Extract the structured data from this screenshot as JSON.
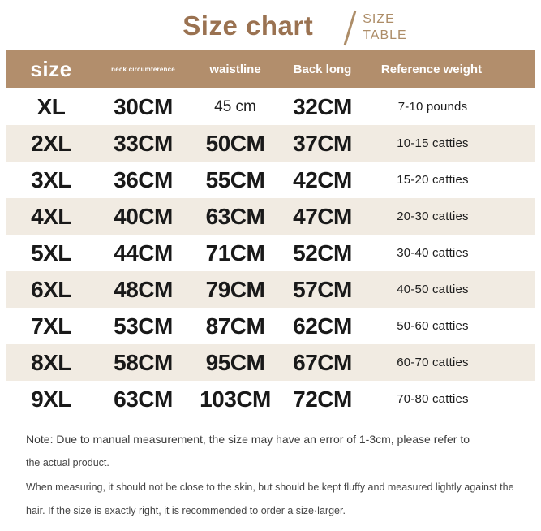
{
  "header": {
    "title": "Size chart",
    "subtitle_line1": "SIZE",
    "subtitle_line2": "TABLE"
  },
  "colors": {
    "header_bg": "#b28e6c",
    "row_alt_bg": "#f1ebe2",
    "title_brown": "#9a7251",
    "subtitle_brown": "#ad8d68",
    "body_text": "#191919",
    "note_text": "#3d3d3d"
  },
  "table": {
    "headers": [
      "size",
      "neck circumference",
      "waistline",
      "Back long",
      "Reference weight"
    ],
    "rows": [
      {
        "size": "XL",
        "neck": "30CM",
        "waist": "45 cm",
        "back": "32CM",
        "weight": "7-10 pounds",
        "waist_small": true
      },
      {
        "size": "2XL",
        "neck": "33CM",
        "waist": "50CM",
        "back": "37CM",
        "weight": "10-15 catties",
        "waist_small": false
      },
      {
        "size": "3XL",
        "neck": "36CM",
        "waist": "55CM",
        "back": "42CM",
        "weight": "15-20 catties",
        "waist_small": false
      },
      {
        "size": "4XL",
        "neck": "40CM",
        "waist": "63CM",
        "back": "47CM",
        "weight": "20-30 catties",
        "waist_small": false
      },
      {
        "size": "5XL",
        "neck": "44CM",
        "waist": "71CM",
        "back": "52CM",
        "weight": "30-40 catties",
        "waist_small": false
      },
      {
        "size": "6XL",
        "neck": "48CM",
        "waist": "79CM",
        "back": "57CM",
        "weight": "40-50 catties",
        "waist_small": false
      },
      {
        "size": "7XL",
        "neck": "53CM",
        "waist": "87CM",
        "back": "62CM",
        "weight": "50-60 catties",
        "waist_small": false
      },
      {
        "size": "8XL",
        "neck": "58CM",
        "waist": "95CM",
        "back": "67CM",
        "weight": "60-70 catties",
        "waist_small": false
      },
      {
        "size": "9XL",
        "neck": "63CM",
        "waist": "103CM",
        "back": "72CM",
        "weight": "70-80 catties",
        "waist_small": false
      }
    ]
  },
  "notes": {
    "line1": "Note: Due to manual measurement, the size may have an error of 1-3cm, please refer to",
    "line2": "the actual product.",
    "line3": "When measuring, it should not be close to the skin, but should be kept fluffy and measured lightly against the",
    "line4": "hair. If the size is exactly right, it is recommended to order a size·larger."
  }
}
